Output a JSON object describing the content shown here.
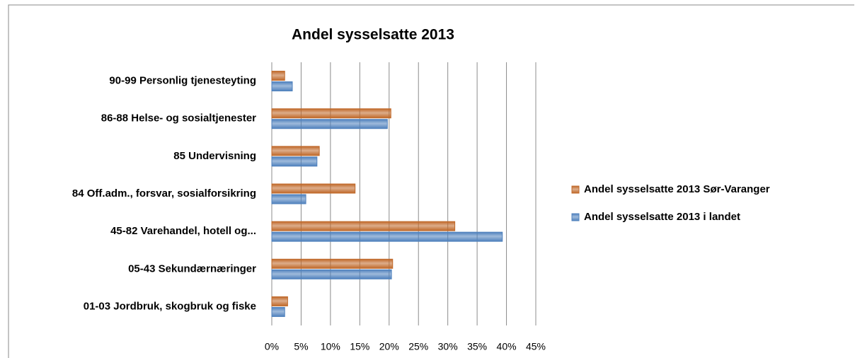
{
  "chart_data": {
    "type": "hbar",
    "title": "Andel sysselsatte 2013",
    "categories": [
      "90-99 Personlig tjenesteyting",
      "86-88 Helse- og sosialtjenester",
      "85 Undervisning",
      "84 Off.adm., forsvar, sosialforsikring",
      "45-82 Varehandel, hotell og...",
      "05-43 Sekundærnæringer",
      "01-03 Jordbruk, skogbruk og fiske"
    ],
    "series": [
      {
        "name": "Andel sysselsatte 2013 Sør-Varanger",
        "color": "#c0692a",
        "values": [
          2.2,
          20.3,
          8.1,
          14.2,
          31.2,
          20.6,
          2.7
        ]
      },
      {
        "name": "Andel sysselsatte 2013 i landet",
        "color": "#4f81bd",
        "values": [
          3.5,
          19.7,
          7.7,
          5.8,
          39.3,
          20.4,
          2.2
        ]
      }
    ],
    "xlim": [
      0,
      45
    ],
    "xticks": [
      {
        "value": 0,
        "label": "0%"
      },
      {
        "value": 5,
        "label": "5%"
      },
      {
        "value": 10,
        "label": "10%"
      },
      {
        "value": 15,
        "label": "15%"
      },
      {
        "value": 20,
        "label": "20%"
      },
      {
        "value": 25,
        "label": "25%"
      },
      {
        "value": 30,
        "label": "30%"
      },
      {
        "value": 35,
        "label": "35%"
      },
      {
        "value": 40,
        "label": "40%"
      },
      {
        "value": 45,
        "label": "45%"
      }
    ],
    "grid": true,
    "legend": "right"
  }
}
